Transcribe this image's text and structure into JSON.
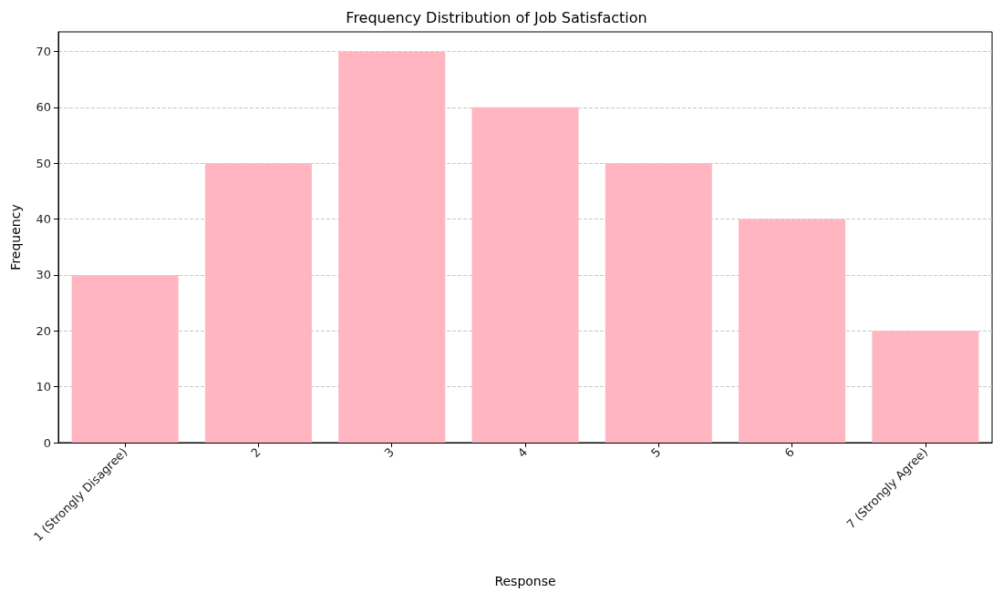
{
  "chart_data": {
    "type": "bar",
    "title": "Frequency Distribution of Job Satisfaction",
    "xlabel": "Response",
    "ylabel": "Frequency",
    "categories": [
      "1 (Strongly Disagree)",
      "2",
      "3",
      "4",
      "5",
      "6",
      "7 (Strongly Agree)"
    ],
    "values": [
      30,
      50,
      70,
      60,
      50,
      40,
      20
    ],
    "color": "#ffb6c1",
    "ylim": [
      0,
      73.5
    ],
    "yticks": [
      0,
      10,
      20,
      30,
      40,
      50,
      60,
      70
    ],
    "grid": "y"
  }
}
